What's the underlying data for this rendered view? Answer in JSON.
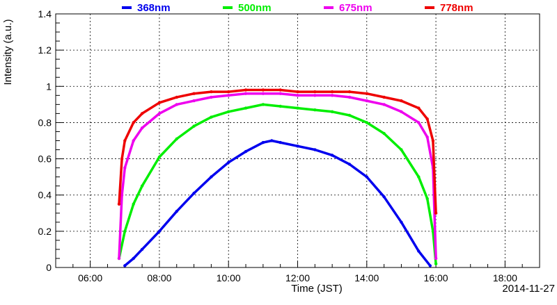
{
  "chart_data": {
    "type": "scatter",
    "title": "",
    "xlabel": "Time (JST)",
    "ylabel": "Intensity (a.u.)",
    "date_label": "2014-11-27",
    "xlim": [
      "05:00",
      "19:00"
    ],
    "ylim": [
      0,
      1.4
    ],
    "grid": true,
    "legend_position": "top",
    "x_ticks": [
      "06:00",
      "08:00",
      "10:00",
      "12:00",
      "14:00",
      "16:00",
      "18:00"
    ],
    "y_ticks": [
      "0",
      "0.2",
      "0.4",
      "0.6",
      "0.8",
      "1",
      "1.2",
      "1.4"
    ],
    "series": [
      {
        "name": "368nm",
        "color": "#0000ee",
        "x": [
          "07:00",
          "07:15",
          "07:30",
          "08:00",
          "08:30",
          "09:00",
          "09:30",
          "10:00",
          "10:30",
          "11:00",
          "11:15",
          "11:30",
          "12:00",
          "12:30",
          "13:00",
          "13:30",
          "14:00",
          "14:30",
          "15:00",
          "15:30",
          "15:50"
        ],
        "y": [
          0.01,
          0.05,
          0.1,
          0.2,
          0.31,
          0.41,
          0.5,
          0.58,
          0.64,
          0.69,
          0.7,
          0.69,
          0.67,
          0.65,
          0.62,
          0.57,
          0.5,
          0.39,
          0.25,
          0.09,
          0.01
        ]
      },
      {
        "name": "500nm",
        "color": "#00ee00",
        "x": [
          "06:50",
          "07:00",
          "07:15",
          "07:30",
          "08:00",
          "08:30",
          "09:00",
          "09:30",
          "10:00",
          "10:30",
          "11:00",
          "11:30",
          "12:00",
          "12:30",
          "13:00",
          "13:30",
          "14:00",
          "14:30",
          "15:00",
          "15:30",
          "15:45",
          "15:55",
          "16:00"
        ],
        "y": [
          0.05,
          0.2,
          0.35,
          0.45,
          0.61,
          0.71,
          0.78,
          0.83,
          0.86,
          0.88,
          0.9,
          0.89,
          0.88,
          0.87,
          0.86,
          0.84,
          0.8,
          0.74,
          0.65,
          0.5,
          0.38,
          0.2,
          0.02
        ]
      },
      {
        "name": "675nm",
        "color": "#ee00ee",
        "x": [
          "06:50",
          "06:55",
          "07:00",
          "07:15",
          "07:30",
          "08:00",
          "08:30",
          "09:00",
          "09:30",
          "10:00",
          "10:30",
          "11:00",
          "11:30",
          "12:00",
          "12:30",
          "13:00",
          "13:30",
          "14:00",
          "14:30",
          "15:00",
          "15:30",
          "15:45",
          "15:55",
          "16:00"
        ],
        "y": [
          0.05,
          0.4,
          0.55,
          0.7,
          0.77,
          0.85,
          0.9,
          0.92,
          0.94,
          0.95,
          0.96,
          0.96,
          0.96,
          0.95,
          0.95,
          0.95,
          0.94,
          0.92,
          0.9,
          0.86,
          0.8,
          0.72,
          0.55,
          0.05
        ]
      },
      {
        "name": "778nm",
        "color": "#ee0000",
        "x": [
          "06:50",
          "06:55",
          "07:00",
          "07:15",
          "07:30",
          "08:00",
          "08:30",
          "09:00",
          "09:30",
          "10:00",
          "10:30",
          "11:00",
          "11:30",
          "12:00",
          "12:30",
          "13:00",
          "13:30",
          "14:00",
          "14:30",
          "15:00",
          "15:30",
          "15:45",
          "15:55",
          "16:00"
        ],
        "y": [
          0.35,
          0.6,
          0.7,
          0.8,
          0.85,
          0.91,
          0.94,
          0.96,
          0.97,
          0.97,
          0.98,
          0.98,
          0.98,
          0.97,
          0.97,
          0.97,
          0.97,
          0.96,
          0.94,
          0.92,
          0.88,
          0.82,
          0.7,
          0.3
        ]
      }
    ]
  }
}
